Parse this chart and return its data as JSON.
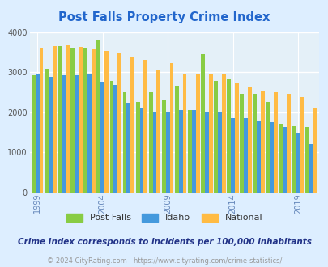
{
  "title": "Post Falls Property Crime Index",
  "subtitle": "Crime Index corresponds to incidents per 100,000 inhabitants",
  "footer": "© 2024 CityRating.com - https://www.cityrating.com/crime-statistics/",
  "years": [
    1999,
    2000,
    2001,
    2002,
    2003,
    2004,
    2005,
    2006,
    2007,
    2008,
    2009,
    2010,
    2011,
    2012,
    2013,
    2014,
    2015,
    2016,
    2017,
    2018,
    2019,
    2020
  ],
  "post_falls": [
    2920,
    3080,
    3650,
    3600,
    3600,
    3800,
    2780,
    2500,
    2250,
    2500,
    2300,
    2650,
    2060,
    3450,
    2780,
    2830,
    2450,
    2460,
    2260,
    1700,
    1650,
    1630
  ],
  "idaho": [
    2940,
    2880,
    2930,
    2920,
    2940,
    2760,
    2670,
    2240,
    2100,
    2000,
    2000,
    2060,
    2050,
    2000,
    1990,
    1860,
    1860,
    1760,
    1750,
    1620,
    1490,
    1210
  ],
  "national": [
    3600,
    3640,
    3660,
    3620,
    3590,
    3530,
    3470,
    3390,
    3310,
    3050,
    3230,
    2970,
    2940,
    2940,
    2950,
    2730,
    2620,
    2520,
    2500,
    2460,
    2380,
    2100
  ],
  "post_falls_color": "#88cc44",
  "idaho_color": "#4499dd",
  "national_color": "#ffbb44",
  "background_color": "#ddeeff",
  "plot_bg_color": "#e4f0f8",
  "ylim": [
    0,
    4000
  ],
  "yticks": [
    0,
    1000,
    2000,
    3000,
    4000
  ],
  "xtick_years": [
    1999,
    2004,
    2009,
    2014,
    2019
  ],
  "title_color": "#2266cc",
  "subtitle_color": "#223388",
  "footer_color": "#999999"
}
